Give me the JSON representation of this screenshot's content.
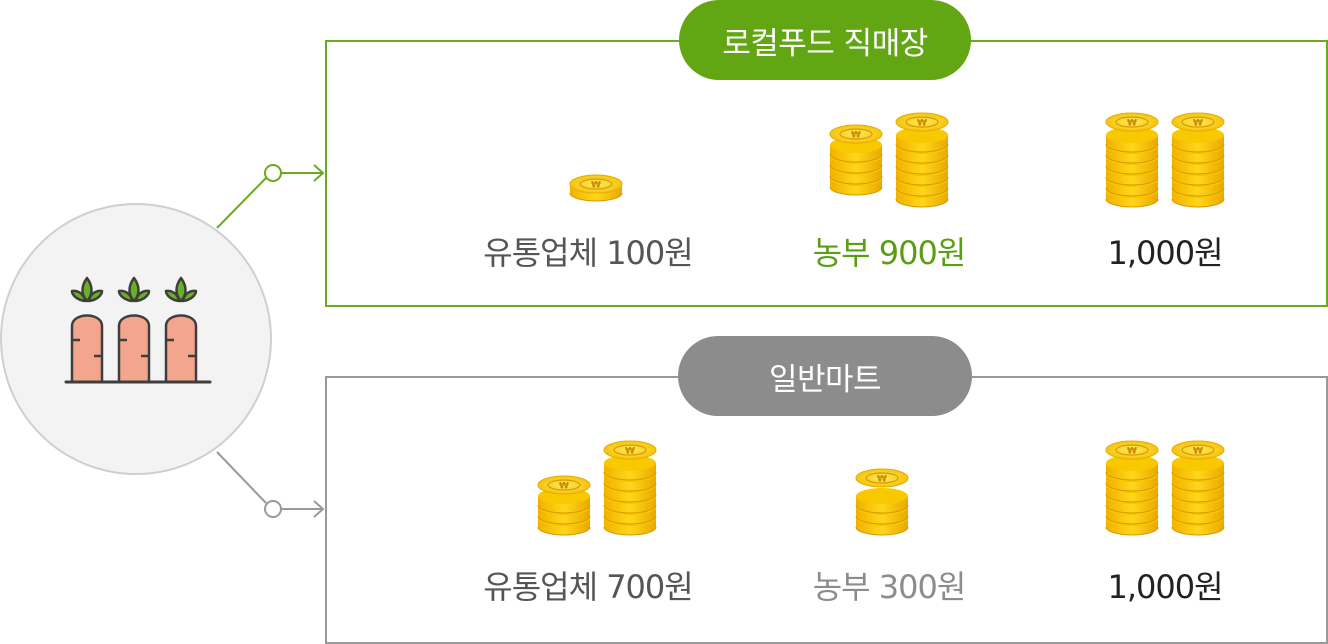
{
  "local_food": {
    "title": "로컬푸드 직매장",
    "distributor_label": "유통업체 100원",
    "farmer_label": "농부 900원",
    "total_label": "1,000원"
  },
  "general_mart": {
    "title": "일반마트",
    "distributor_label": "유통업체 700원",
    "farmer_label": "농부 300원",
    "total_label": "1,000원"
  },
  "icons": {
    "source": "carrot-icon",
    "coin": "won-coin-stack-icon",
    "arrow": "arrow-right-icon"
  },
  "colors": {
    "green": "#63a614",
    "grey": "#8c8c8c",
    "coin_gold": "#f6c400",
    "carrot": "#f4a58e",
    "leaf": "#6ab024"
  }
}
